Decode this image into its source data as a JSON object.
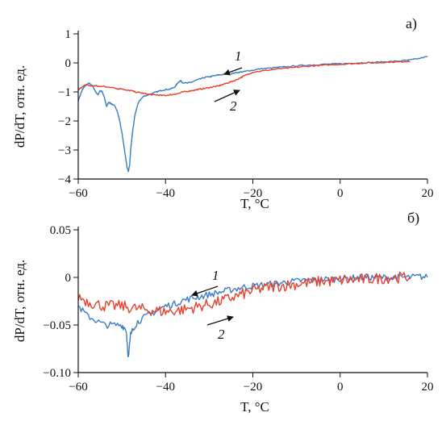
{
  "chart_data": [
    {
      "type": "line",
      "panel_label": "а)",
      "xlabel": "T, °C",
      "ylabel": "dP/dT, отн. ед.",
      "xlim": [
        -60,
        20
      ],
      "ylim": [
        -4,
        1
      ],
      "xticks": [
        "−60",
        "−40",
        "−20",
        "0",
        "20"
      ],
      "yticks": [
        "−4",
        "−3",
        "−2",
        "−1",
        "0",
        "1"
      ],
      "curve_labels": [
        {
          "text": "1",
          "arrow_direction": "left"
        },
        {
          "text": "2",
          "arrow_direction": "right"
        }
      ],
      "series": [
        {
          "color": "#3a7cc9",
          "x": [
            -60,
            -59.5,
            -59,
            -58.5,
            -58,
            -57.5,
            -57,
            -56.5,
            -56,
            -55.5,
            -55,
            -54.5,
            -54,
            -53.5,
            -53,
            -52.5,
            -52,
            -51.5,
            -51,
            -50.5,
            -50,
            -49.5,
            -49,
            -48.8,
            -48.5,
            -48.2,
            -48,
            -47.5,
            -47,
            -46.5,
            -46,
            -45,
            -44,
            -43,
            -42,
            -41,
            -40,
            -39,
            -38,
            -37.5,
            -37,
            -36.5,
            -36,
            -35,
            -34,
            -33,
            -32,
            -31,
            -30,
            -29,
            -28,
            -27,
            -26,
            -25,
            -24,
            -23,
            -22,
            -21,
            -20,
            -18,
            -16,
            -14,
            -12,
            -10,
            -8,
            -6,
            -4,
            -2,
            0,
            2,
            4,
            6,
            8,
            10,
            12,
            14,
            16,
            18,
            20
          ],
          "y": [
            -1.3,
            -1.1,
            -0.9,
            -0.8,
            -0.75,
            -0.7,
            -0.75,
            -0.85,
            -1.0,
            -1.1,
            -0.95,
            -1.0,
            -1.2,
            -1.5,
            -1.35,
            -1.4,
            -1.45,
            -1.5,
            -1.7,
            -2.0,
            -2.4,
            -2.9,
            -3.4,
            -3.6,
            -3.75,
            -3.5,
            -3.0,
            -2.3,
            -1.8,
            -1.5,
            -1.3,
            -1.15,
            -1.1,
            -1.05,
            -1.0,
            -0.95,
            -0.92,
            -0.9,
            -0.85,
            -0.75,
            -0.65,
            -0.62,
            -0.68,
            -0.7,
            -0.66,
            -0.6,
            -0.55,
            -0.5,
            -0.48,
            -0.45,
            -0.42,
            -0.4,
            -0.38,
            -0.37,
            -0.34,
            -0.32,
            -0.3,
            -0.27,
            -0.25,
            -0.2,
            -0.18,
            -0.15,
            -0.13,
            -0.1,
            -0.08,
            -0.07,
            -0.05,
            -0.04,
            -0.03,
            -0.02,
            0.0,
            0.01,
            0.02,
            0.04,
            0.05,
            0.07,
            0.1,
            0.15,
            0.22
          ]
        },
        {
          "color": "#e8402a",
          "x": [
            -60,
            -59,
            -58,
            -57,
            -56,
            -55,
            -54,
            -53,
            -52,
            -51,
            -50,
            -49,
            -48,
            -47,
            -46,
            -45,
            -44,
            -43,
            -42,
            -41,
            -40,
            -39,
            -38,
            -37,
            -36,
            -35,
            -34,
            -33,
            -32,
            -31,
            -30,
            -29,
            -28,
            -27,
            -26,
            -25,
            -24,
            -23,
            -22,
            -21,
            -20,
            -18,
            -16,
            -14,
            -12,
            -10,
            -8,
            -6,
            -4,
            -2,
            0,
            2,
            4,
            6,
            8,
            10,
            12,
            14,
            15,
            16
          ],
          "y": [
            -0.95,
            -0.8,
            -0.75,
            -0.8,
            -0.78,
            -0.82,
            -0.8,
            -0.85,
            -0.83,
            -0.9,
            -0.88,
            -0.95,
            -0.95,
            -1.0,
            -1.02,
            -1.05,
            -1.08,
            -1.1,
            -1.1,
            -1.12,
            -1.12,
            -1.1,
            -1.08,
            -1.05,
            -1.0,
            -0.98,
            -0.95,
            -0.93,
            -0.9,
            -0.88,
            -0.85,
            -0.82,
            -0.8,
            -0.75,
            -0.7,
            -0.65,
            -0.6,
            -0.52,
            -0.45,
            -0.38,
            -0.32,
            -0.28,
            -0.24,
            -0.2,
            -0.18,
            -0.15,
            -0.12,
            -0.1,
            -0.08,
            -0.06,
            -0.05,
            -0.03,
            -0.02,
            0.0,
            0.0,
            0.02,
            0.03,
            0.04,
            0.05,
            0.05
          ]
        }
      ]
    },
    {
      "type": "line",
      "panel_label": "б)",
      "xlabel": "T, °C",
      "ylabel": "dP/dT, отн. ед.",
      "xlim": [
        -60,
        20
      ],
      "ylim": [
        -0.1,
        0.05
      ],
      "xticks": [
        "−60",
        "−40",
        "−20",
        "0",
        "20"
      ],
      "yticks": [
        "−0.10",
        "−0.05",
        "0",
        "0.05"
      ],
      "curve_labels": [
        {
          "text": "1",
          "arrow_direction": "left"
        },
        {
          "text": "2",
          "arrow_direction": "right"
        }
      ],
      "series": [
        {
          "color": "#3a7cc9",
          "x": [
            -60,
            -58,
            -56,
            -54,
            -52,
            -50,
            -49,
            -48.5,
            -48,
            -47,
            -46,
            -44,
            -42,
            -40,
            -38,
            -36,
            -34,
            -32,
            -30,
            -28,
            -26,
            -24,
            -22,
            -20,
            -18,
            -16,
            -14,
            -12,
            -10,
            -8,
            -6,
            -4,
            -2,
            0,
            2,
            4,
            6,
            8,
            10,
            12,
            14,
            16,
            18,
            20
          ],
          "y": [
            -0.03,
            -0.04,
            -0.045,
            -0.05,
            -0.05,
            -0.05,
            -0.055,
            -0.085,
            -0.06,
            -0.05,
            -0.045,
            -0.04,
            -0.035,
            -0.03,
            -0.028,
            -0.024,
            -0.022,
            -0.02,
            -0.018,
            -0.016,
            -0.014,
            -0.012,
            -0.01,
            -0.009,
            -0.008,
            -0.007,
            -0.006,
            -0.005,
            -0.004,
            -0.003,
            -0.003,
            -0.002,
            -0.002,
            -0.001,
            -0.001,
            0.0,
            0.0,
            0.0,
            0.0,
            0.0,
            0.0,
            0.0,
            0.001,
            0.0
          ]
        },
        {
          "color": "#e8402a",
          "x": [
            -60,
            -58,
            -56,
            -54,
            -52,
            -50,
            -48,
            -46,
            -44,
            -42,
            -40,
            -38,
            -36,
            -34,
            -32,
            -30,
            -28,
            -26,
            -24,
            -22,
            -20,
            -18,
            -16,
            -14,
            -12,
            -10,
            -8,
            -6,
            -4,
            -2,
            0,
            2,
            4,
            6,
            8,
            10,
            12,
            14,
            16
          ],
          "y": [
            -0.02,
            -0.025,
            -0.028,
            -0.03,
            -0.03,
            -0.03,
            -0.032,
            -0.033,
            -0.034,
            -0.035,
            -0.036,
            -0.035,
            -0.034,
            -0.032,
            -0.03,
            -0.028,
            -0.026,
            -0.023,
            -0.02,
            -0.017,
            -0.014,
            -0.012,
            -0.01,
            -0.009,
            -0.008,
            -0.007,
            -0.006,
            -0.005,
            -0.004,
            -0.004,
            -0.003,
            -0.003,
            -0.002,
            -0.002,
            -0.001,
            -0.001,
            0.0,
            0.0,
            0.0
          ]
        }
      ]
    }
  ]
}
